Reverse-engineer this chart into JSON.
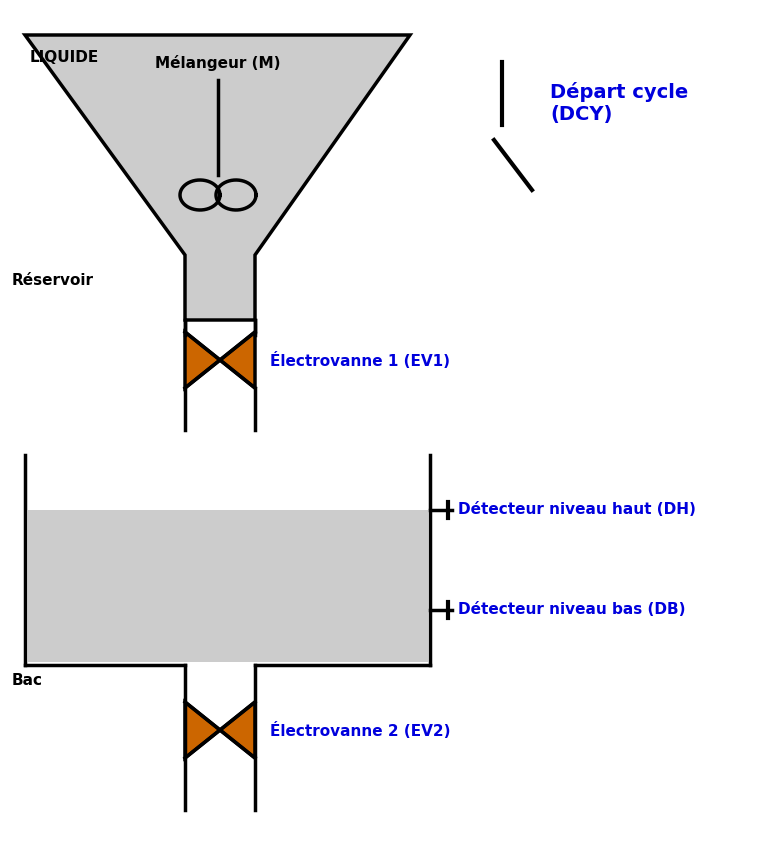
{
  "bg_color": "#ffffff",
  "fill_gray": "#cccccc",
  "line_color": "#000000",
  "valve_color": "#cc6600",
  "blue_color": "#0000dd",
  "liquide_label": "LIQUIDE",
  "melangeur_label": "Mélangeur (M)",
  "reservoir_label": "Réservoir",
  "bac_label": "Bac",
  "ev1_label": "Électrovanne 1 (EV1)",
  "ev2_label": "Électrovanne 2 (EV2)",
  "dh_label": "Détecteur niveau haut (DH)",
  "db_label": "Détecteur niveau bas (DB)",
  "depart_label": "Départ cycle\n(DCY)",
  "fig_width": 7.74,
  "fig_height": 8.46,
  "dpi": 100
}
